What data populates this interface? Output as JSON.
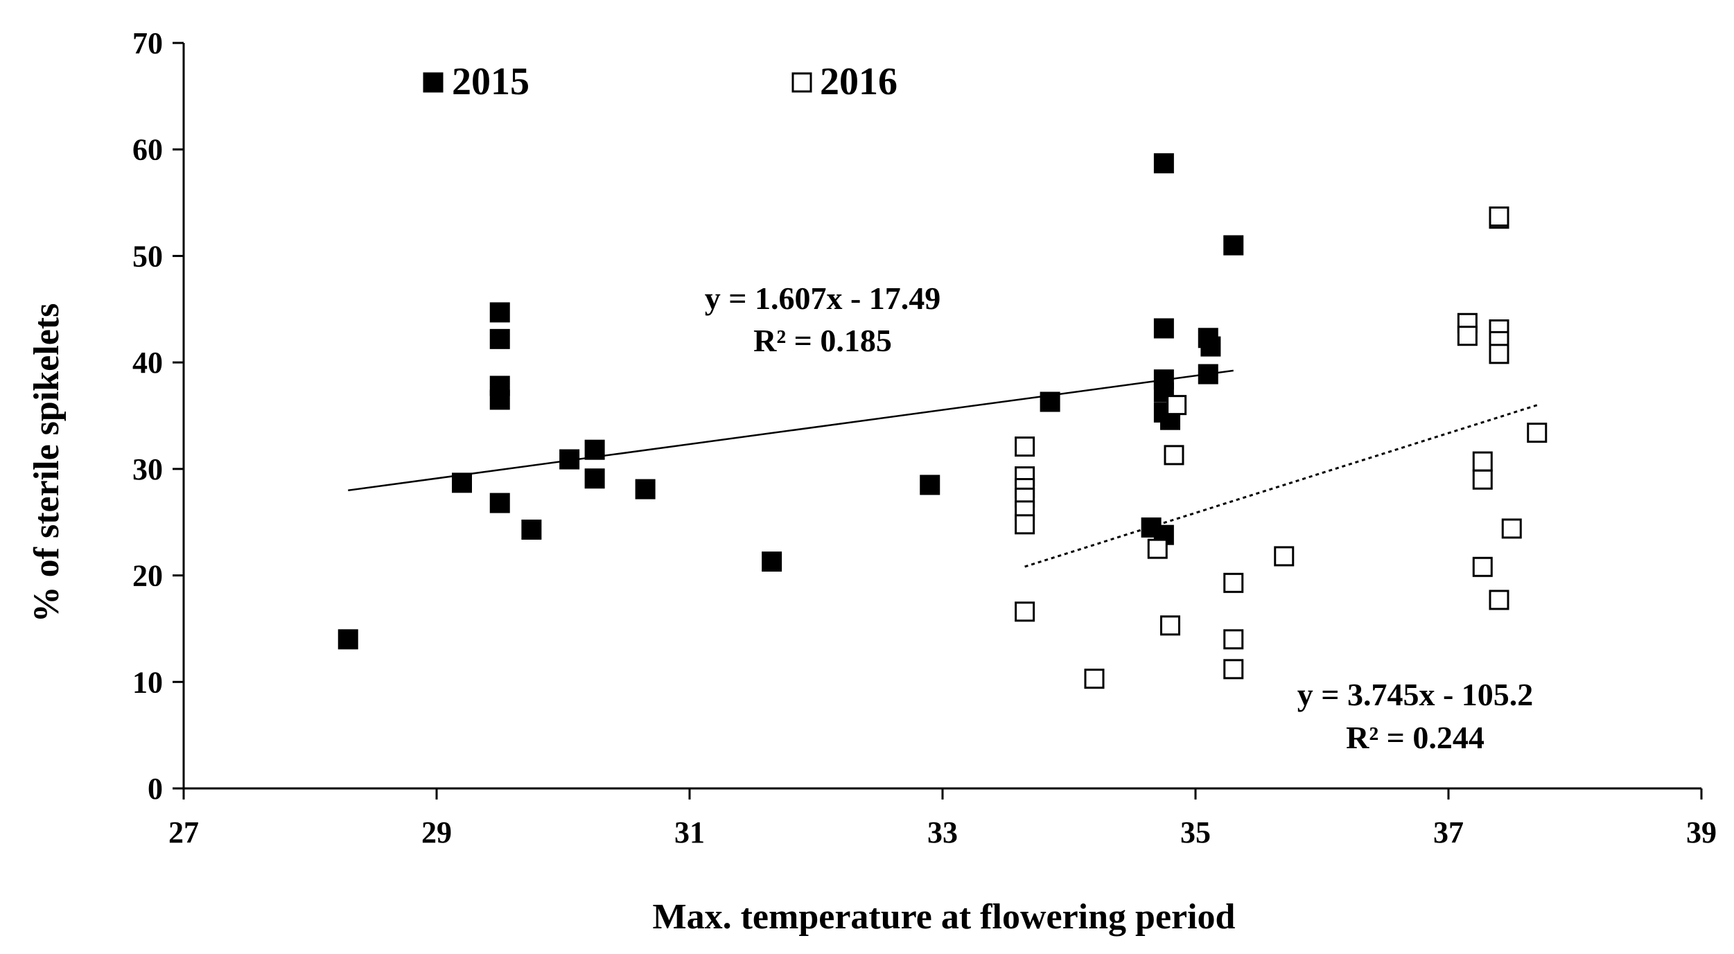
{
  "chart_data": {
    "type": "scatter",
    "title": "",
    "xlabel": "Max. temperature at flowering period",
    "ylabel": "% of sterile spikelets",
    "xlim": [
      27,
      39
    ],
    "ylim": [
      0,
      70
    ],
    "xticks": [
      27,
      29,
      31,
      33,
      35,
      37,
      39
    ],
    "yticks": [
      0,
      10,
      20,
      30,
      40,
      50,
      60,
      70
    ],
    "grid": false,
    "legend_position": "top",
    "series": [
      {
        "name": "2015",
        "marker": "filled-square",
        "color": "#000000",
        "points": [
          [
            28.3,
            14.0
          ],
          [
            29.2,
            28.7
          ],
          [
            29.5,
            44.7
          ],
          [
            29.5,
            42.2
          ],
          [
            29.5,
            37.8
          ],
          [
            29.5,
            36.5
          ],
          [
            29.5,
            26.8
          ],
          [
            29.75,
            24.3
          ],
          [
            30.05,
            30.9
          ],
          [
            30.25,
            31.8
          ],
          [
            30.25,
            29.1
          ],
          [
            30.65,
            28.1
          ],
          [
            31.65,
            21.3
          ],
          [
            32.9,
            28.5
          ],
          [
            33.85,
            36.3
          ],
          [
            34.65,
            24.5
          ],
          [
            34.75,
            58.7
          ],
          [
            34.75,
            43.2
          ],
          [
            34.75,
            38.4
          ],
          [
            34.75,
            37.2
          ],
          [
            34.75,
            35.3
          ],
          [
            34.75,
            23.8
          ],
          [
            34.8,
            34.6
          ],
          [
            35.1,
            42.3
          ],
          [
            35.12,
            41.5
          ],
          [
            35.1,
            38.9
          ],
          [
            35.3,
            51.0
          ]
        ],
        "trendline": {
          "x_start": 28.3,
          "x_end": 35.3,
          "equation": "y = 1.607x - 17.49",
          "r2": "R² = 0.185",
          "style": "solid"
        }
      },
      {
        "name": "2016",
        "marker": "open-square",
        "color": "#000000",
        "points": [
          [
            33.65,
            32.1
          ],
          [
            33.65,
            29.3
          ],
          [
            33.65,
            28.2
          ],
          [
            33.65,
            27.3
          ],
          [
            33.65,
            26.1
          ],
          [
            33.65,
            24.8
          ],
          [
            33.65,
            16.6
          ],
          [
            34.2,
            10.3
          ],
          [
            34.7,
            22.5
          ],
          [
            34.8,
            15.3
          ],
          [
            34.83,
            31.3
          ],
          [
            34.85,
            36.0
          ],
          [
            35.3,
            19.3
          ],
          [
            35.3,
            14.0
          ],
          [
            35.3,
            11.2
          ],
          [
            35.7,
            21.8
          ],
          [
            37.15,
            43.7
          ],
          [
            37.15,
            42.5
          ],
          [
            37.27,
            30.7
          ],
          [
            37.27,
            29.0
          ],
          [
            37.27,
            20.8
          ],
          [
            37.4,
            53.5
          ],
          [
            37.4,
            53.7
          ],
          [
            37.4,
            43.1
          ],
          [
            37.4,
            42.0
          ],
          [
            37.4,
            40.8
          ],
          [
            37.4,
            17.7
          ],
          [
            37.5,
            24.4
          ],
          [
            37.7,
            33.4
          ]
        ],
        "trendline": {
          "x_start": 33.65,
          "x_end": 37.7,
          "equation": "y = 3.745x - 105.2",
          "r2": "R² = 0.244",
          "style": "dotted"
        }
      }
    ]
  }
}
